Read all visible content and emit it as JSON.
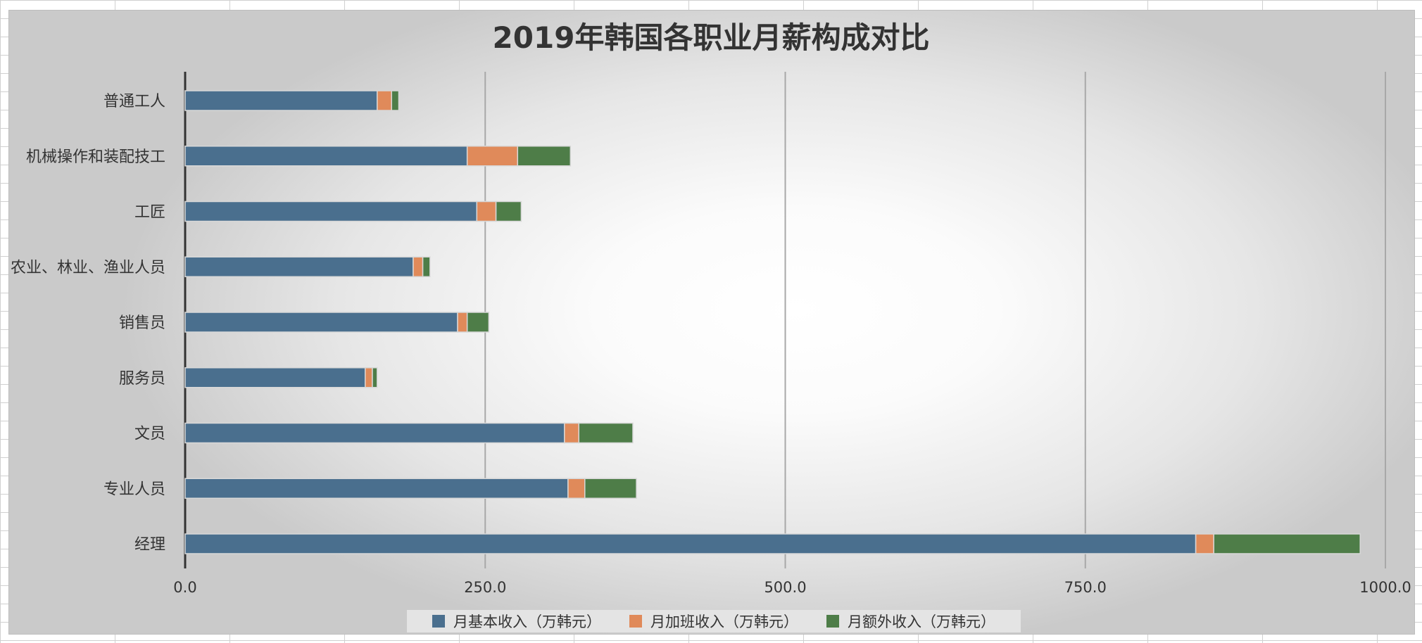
{
  "chart_data": {
    "type": "bar",
    "orientation": "horizontal",
    "stacked": true,
    "title": "2019年韩国各职业月薪构成对比",
    "categories": [
      "普通工人",
      "机械操作和装配技工",
      "工匠",
      "农业、林业、渔业人员",
      "销售员",
      "服务员",
      "文员",
      "专业人员",
      "经理"
    ],
    "series": [
      {
        "name": "月基本收入（万韩元）",
        "color": "#4a6f8e",
        "values": [
          160,
          235,
          243,
          190,
          227,
          150,
          316,
          319,
          842
        ]
      },
      {
        "name": "月加班收入（万韩元）",
        "color": "#e08a5a",
        "values": [
          12,
          42,
          16,
          8,
          8,
          6,
          12,
          14,
          15
        ]
      },
      {
        "name": "月额外收入（万韩元）",
        "color": "#4e7d48",
        "values": [
          6,
          44,
          21,
          6,
          18,
          4,
          45,
          43,
          122
        ]
      }
    ],
    "x_ticks": [
      "0.0",
      "250.0",
      "500.0",
      "750.0",
      "1000.0"
    ],
    "xlim": [
      0,
      1000
    ],
    "grid": "vertical",
    "legend_position": "bottom"
  }
}
